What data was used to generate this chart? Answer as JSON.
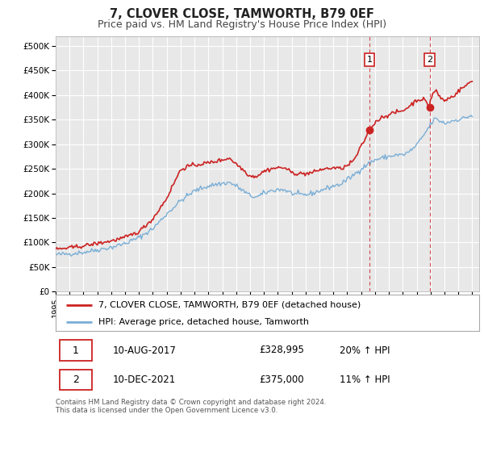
{
  "title": "7, CLOVER CLOSE, TAMWORTH, B79 0EF",
  "subtitle": "Price paid vs. HM Land Registry's House Price Index (HPI)",
  "xlim": [
    1995.0,
    2025.5
  ],
  "ylim": [
    0,
    520000
  ],
  "yticks": [
    0,
    50000,
    100000,
    150000,
    200000,
    250000,
    300000,
    350000,
    400000,
    450000,
    500000
  ],
  "ytick_labels": [
    "£0",
    "£50K",
    "£100K",
    "£150K",
    "£200K",
    "£250K",
    "£300K",
    "£350K",
    "£400K",
    "£450K",
    "£500K"
  ],
  "hpi_color": "#7aaed6",
  "price_color": "#cc2222",
  "marker1_date": 2017.608,
  "marker1_value": 328995,
  "marker2_date": 2021.94,
  "marker2_value": 375000,
  "vline1_x": 2017.608,
  "vline2_x": 2021.94,
  "legend_label_price": "7, CLOVER CLOSE, TAMWORTH, B79 0EF (detached house)",
  "legend_label_hpi": "HPI: Average price, detached house, Tamworth",
  "table_row1": [
    "1",
    "10-AUG-2017",
    "£328,995",
    "20% ↑ HPI"
  ],
  "table_row2": [
    "2",
    "10-DEC-2021",
    "£375,000",
    "11% ↑ HPI"
  ],
  "footnote": "Contains HM Land Registry data © Crown copyright and database right 2024.\nThis data is licensed under the Open Government Licence v3.0.",
  "bg_color": "#f0f0f0",
  "chart_bg": "#e8e8e8",
  "grid_color": "#ffffff",
  "title_fontsize": 10.5,
  "subtitle_fontsize": 9
}
